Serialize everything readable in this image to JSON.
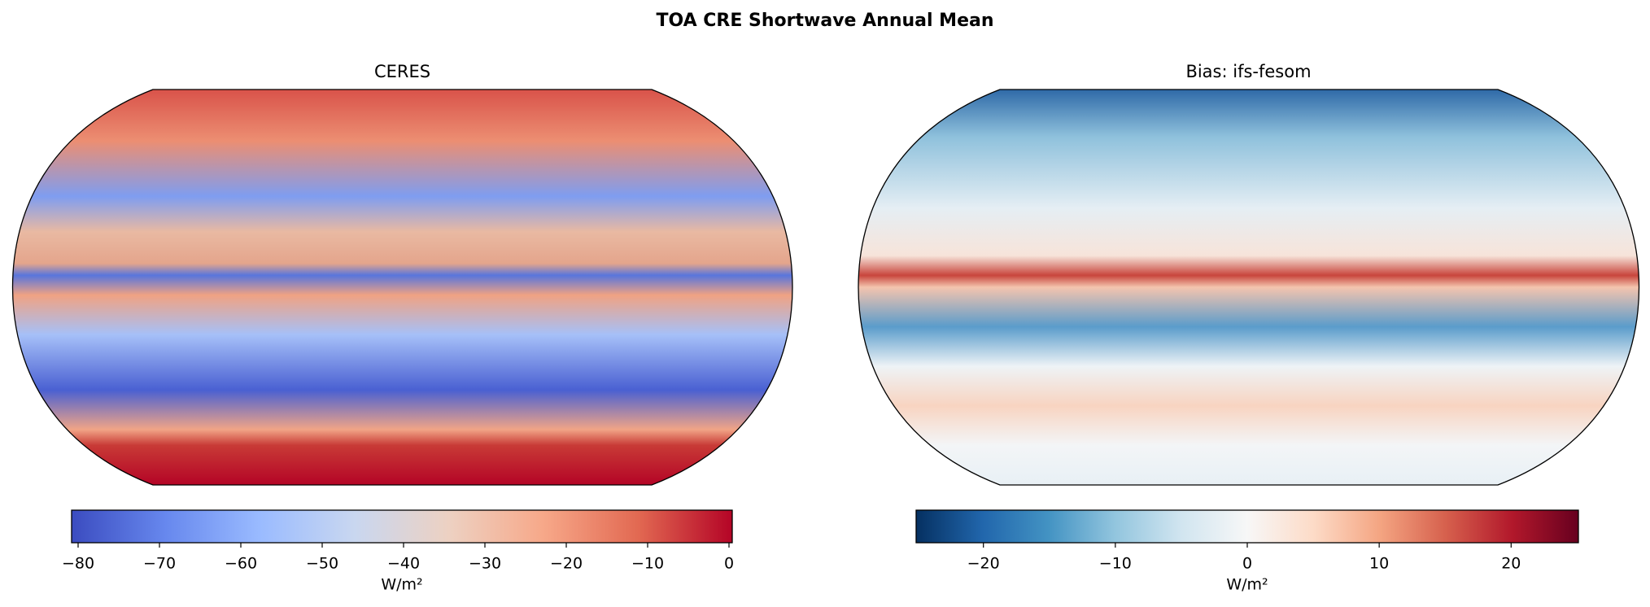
{
  "title": "TOA CRE Shortwave Annual Mean",
  "chart_data": [
    {
      "type": "map",
      "title": "CERES",
      "colorbar": {
        "label": "W/m²",
        "lim": [
          -80.8,
          0.4
        ],
        "ticks": [
          {
            "value": -80,
            "label": "−80"
          },
          {
            "value": -70,
            "label": "−70"
          },
          {
            "value": -60,
            "label": "−60"
          },
          {
            "value": -50,
            "label": "−50"
          },
          {
            "value": -40,
            "label": "−40"
          },
          {
            "value": -30,
            "label": "−30"
          },
          {
            "value": -20,
            "label": "−20"
          },
          {
            "value": -10,
            "label": "−10"
          },
          0
        ],
        "colors": [
          "#3b4cc0",
          "#6788ee",
          "#9abbff",
          "#c9d7f0",
          "#edd1c2",
          "#f7a889",
          "#e26952",
          "#b40426"
        ]
      }
    },
    {
      "type": "map",
      "title": "Bias: ifs-fesom",
      "colorbar": {
        "label": "W/m²",
        "lim": [
          -25.1,
          25.1
        ],
        "ticks": [
          {
            "value": -20,
            "label": "−20"
          },
          {
            "value": -10,
            "label": "−10"
          },
          0,
          10,
          20
        ],
        "colors": [
          "#053061",
          "#2166ac",
          "#4393c3",
          "#92c5de",
          "#d1e5f0",
          "#f7f7f7",
          "#fddbc7",
          "#f4a582",
          "#d6604d",
          "#b2182b",
          "#67001f"
        ]
      }
    }
  ]
}
